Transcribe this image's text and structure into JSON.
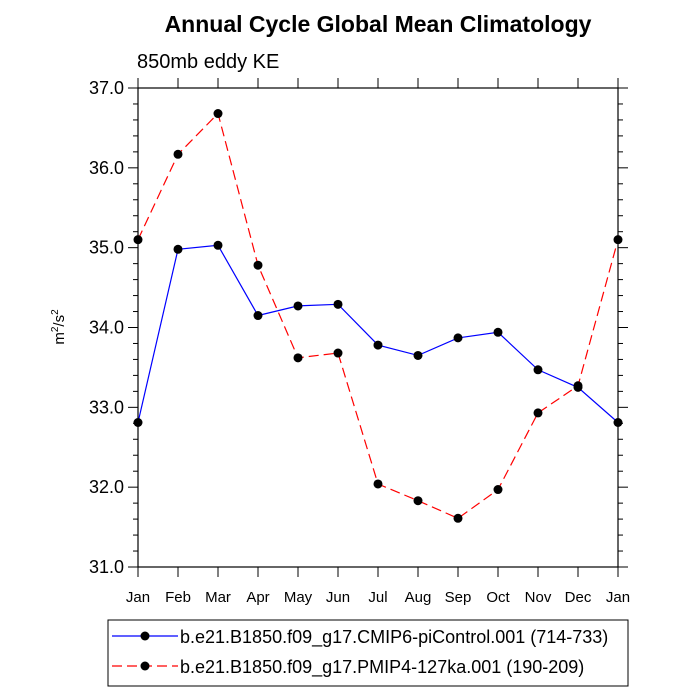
{
  "chart_data": {
    "type": "line",
    "title": "Annual Cycle Global Mean Climatology",
    "subtitle": "850mb eddy KE",
    "xlabel": "",
    "ylabel_base": "m",
    "ylabel_exp": "2",
    "ylabel_sep": "/s",
    "ylabel_exp2": "2",
    "ylim": [
      31.0,
      37.0
    ],
    "yticks": [
      "31.0",
      "32.0",
      "33.0",
      "34.0",
      "35.0",
      "36.0",
      "37.0"
    ],
    "categories": [
      "Jan",
      "Feb",
      "Mar",
      "Apr",
      "May",
      "Jun",
      "Jul",
      "Aug",
      "Sep",
      "Oct",
      "Nov",
      "Dec",
      "Jan"
    ],
    "series": [
      {
        "name": "b.e21.B1850.f09_g17.CMIP6-piControl.001 (714-733)",
        "color": "#0000ff",
        "dash": "solid",
        "values": [
          32.81,
          34.98,
          35.03,
          34.15,
          34.27,
          34.29,
          33.78,
          33.65,
          33.87,
          33.94,
          33.47,
          33.25,
          32.81
        ]
      },
      {
        "name": "b.e21.B1850.f09_g17.PMIP4-127ka.001 (190-209)",
        "color": "#ff0000",
        "dash": "dashed",
        "values": [
          35.1,
          36.17,
          36.68,
          34.78,
          33.62,
          33.68,
          32.04,
          31.83,
          31.61,
          31.97,
          32.93,
          33.27,
          35.1
        ]
      }
    ]
  }
}
